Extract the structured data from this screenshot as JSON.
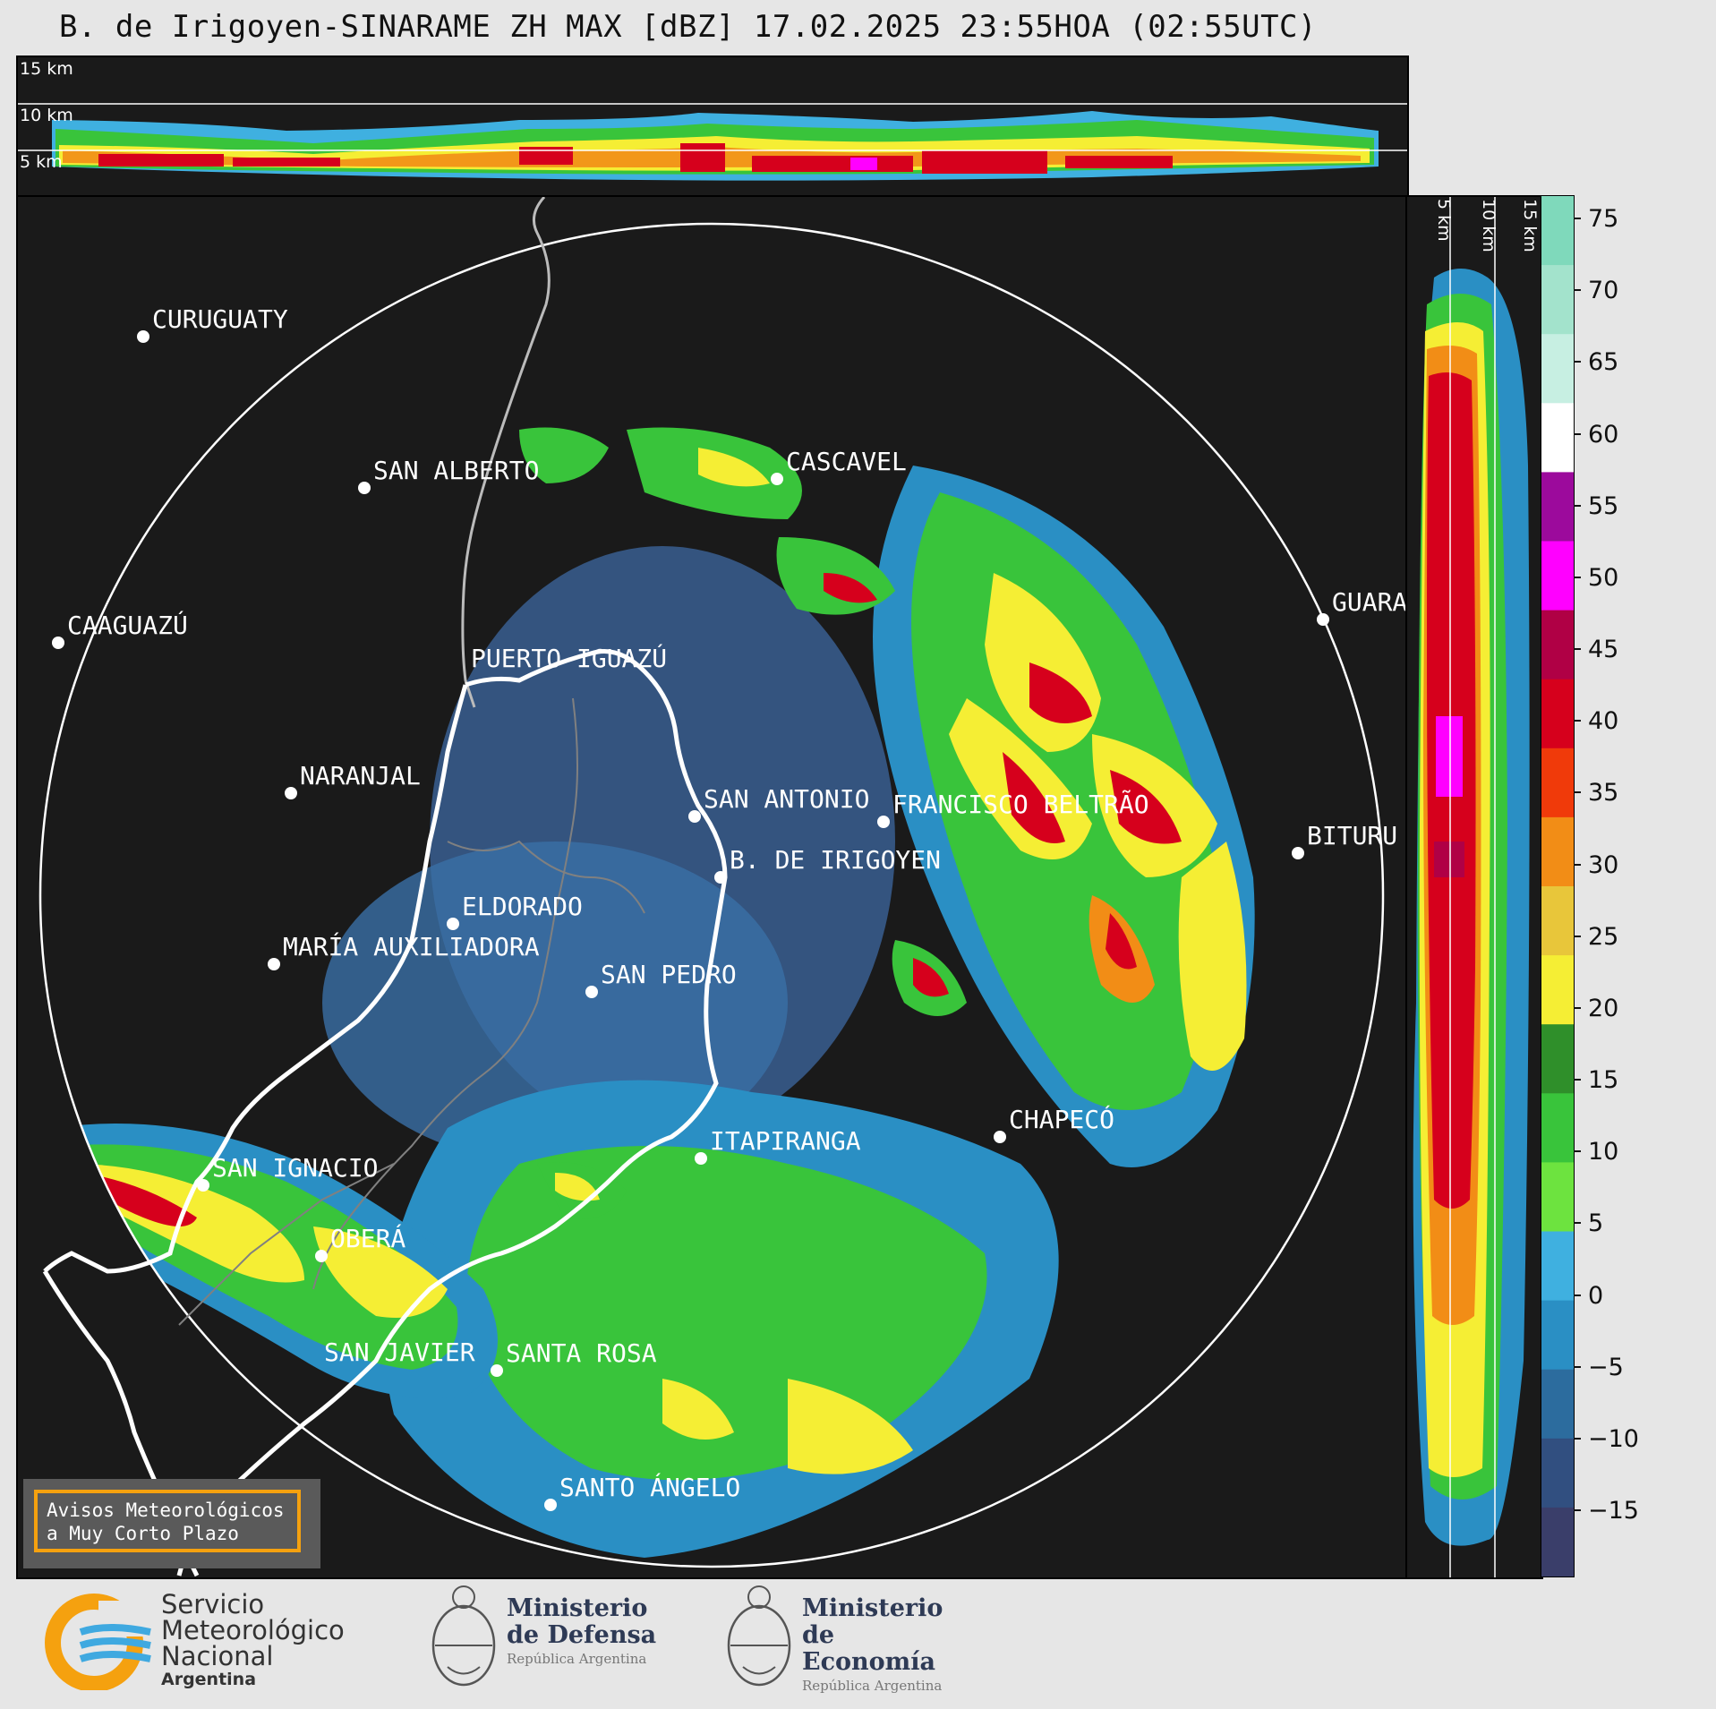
{
  "title": "B. de Irigoyen-SINARAME ZH MAX [dBZ] 17.02.2025 23:55HOA (02:55UTC)",
  "top_panel": {
    "altitude_labels": [
      "15 km",
      "10 km",
      "5 km"
    ]
  },
  "side_panel": {
    "altitude_labels": [
      "5 km",
      "10 km",
      "15 km"
    ]
  },
  "colorbar": {
    "ticks": [
      "75",
      "70",
      "65",
      "60",
      "55",
      "50",
      "45",
      "40",
      "35",
      "30",
      "25",
      "20",
      "15",
      "10",
      "5",
      "0",
      "−5",
      "−10",
      "−15"
    ],
    "colors_high_to_low": [
      "#7fd9bb",
      "#a3e3cc",
      "#c7efe2",
      "#ffffff",
      "#9c0a9c",
      "#ff00ff",
      "#b00045",
      "#d6001c",
      "#f03a0a",
      "#f28d16",
      "#e8c63a",
      "#f5ee34",
      "#2f8f2a",
      "#39c43b",
      "#6de33f",
      "#3fb0e0",
      "#2a8fc4",
      "#2c6c9e",
      "#314f80",
      "#3a3e6a"
    ]
  },
  "cities": [
    {
      "name": "CURUGUATY"
    },
    {
      "name": "SAN ALBERTO"
    },
    {
      "name": "CASCAVEL"
    },
    {
      "name": "CAAGUAZÚ"
    },
    {
      "name": "GUARA"
    },
    {
      "name": "PUERTO IGUAZÚ"
    },
    {
      "name": "NARANJAL"
    },
    {
      "name": "SAN ANTONIO"
    },
    {
      "name": "FRANCISCO BELTRÃO"
    },
    {
      "name": "BITURU"
    },
    {
      "name": "B. DE IRIGOYEN"
    },
    {
      "name": "ELDORADO"
    },
    {
      "name": "MARÍA AUXILIADORA"
    },
    {
      "name": "SAN PEDRO"
    },
    {
      "name": "CHAPECÓ"
    },
    {
      "name": "ITAPIRANGA"
    },
    {
      "name": "SAN IGNACIO"
    },
    {
      "name": "OBERÁ"
    },
    {
      "name": "SAN JAVIER"
    },
    {
      "name": "SANTA ROSA"
    },
    {
      "name": "SANTO ÁNGELO"
    }
  ],
  "avisos": {
    "line1": "Avisos Meteorológicos",
    "line2": "a Muy Corto Plazo"
  },
  "footer": {
    "smn": {
      "line1": "Servicio",
      "line2": "Meteorológico",
      "line3": "Nacional",
      "line4": "Argentina"
    },
    "defensa": {
      "line1": "Ministerio",
      "line2": "de Defensa",
      "line3": "República Argentina"
    },
    "economia": {
      "line1": "Ministerio",
      "line2": "de Economía",
      "line3": "República Argentina"
    }
  }
}
